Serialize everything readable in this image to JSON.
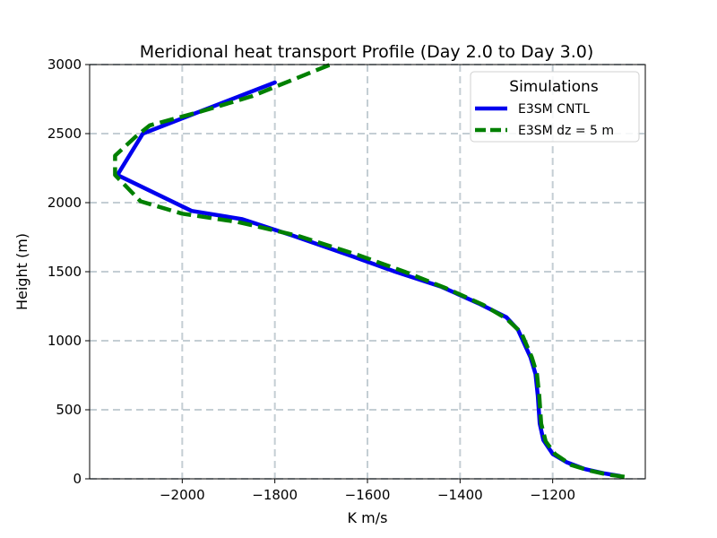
{
  "chart_data": {
    "type": "line",
    "title": "Meridional heat transport Profile (Day 2.0 to Day 3.0)",
    "xlabel": "K m/s",
    "ylabel": "Height (m)",
    "xlim": [
      -2200,
      -1000
    ],
    "ylim": [
      0,
      3000
    ],
    "xticks": [
      -2000,
      -1800,
      -1600,
      -1400,
      -1200
    ],
    "xtick_labels": [
      "−2000",
      "−1800",
      "−1600",
      "−1400",
      "−1200"
    ],
    "yticks": [
      0,
      500,
      1000,
      1500,
      2000,
      2500,
      3000
    ],
    "ytick_labels": [
      "0",
      "500",
      "1000",
      "1500",
      "2000",
      "2500",
      "3000"
    ],
    "grid": true,
    "legend": {
      "title": "Simulations",
      "position": "top-right",
      "entries": [
        "E3SM CNTL",
        "E3SM dz = 5 m"
      ]
    },
    "series": [
      {
        "name": "E3SM CNTL",
        "color": "#0000ee",
        "style": "solid",
        "points": [
          [
            -1055,
            20
          ],
          [
            -1090,
            40
          ],
          [
            -1130,
            70
          ],
          [
            -1170,
            120
          ],
          [
            -1200,
            180
          ],
          [
            -1220,
            280
          ],
          [
            -1228,
            400
          ],
          [
            -1232,
            600
          ],
          [
            -1237,
            760
          ],
          [
            -1248,
            880
          ],
          [
            -1275,
            1080
          ],
          [
            -1300,
            1170
          ],
          [
            -1360,
            1270
          ],
          [
            -1440,
            1390
          ],
          [
            -1540,
            1500
          ],
          [
            -1640,
            1620
          ],
          [
            -1760,
            1760
          ],
          [
            -1870,
            1880
          ],
          [
            -1980,
            1940
          ],
          [
            -2140,
            2200
          ],
          [
            -2085,
            2500
          ],
          [
            -1800,
            2870
          ]
        ]
      },
      {
        "name": "E3SM dz = 5 m",
        "color": "#008000",
        "style": "dashed",
        "points": [
          [
            -1045,
            15
          ],
          [
            -1080,
            30
          ],
          [
            -1120,
            60
          ],
          [
            -1160,
            100
          ],
          [
            -1195,
            180
          ],
          [
            -1215,
            270
          ],
          [
            -1225,
            400
          ],
          [
            -1229,
            600
          ],
          [
            -1234,
            760
          ],
          [
            -1245,
            880
          ],
          [
            -1268,
            1060
          ],
          [
            -1300,
            1160
          ],
          [
            -1350,
            1260
          ],
          [
            -1430,
            1380
          ],
          [
            -1520,
            1500
          ],
          [
            -1620,
            1620
          ],
          [
            -1750,
            1760
          ],
          [
            -1880,
            1860
          ],
          [
            -2000,
            1920
          ],
          [
            -2090,
            2010
          ],
          [
            -2145,
            2200
          ],
          [
            -2145,
            2340
          ],
          [
            -2100,
            2480
          ],
          [
            -2070,
            2560
          ],
          [
            -1960,
            2660
          ],
          [
            -1850,
            2770
          ],
          [
            -1680,
            3000
          ]
        ]
      }
    ]
  }
}
